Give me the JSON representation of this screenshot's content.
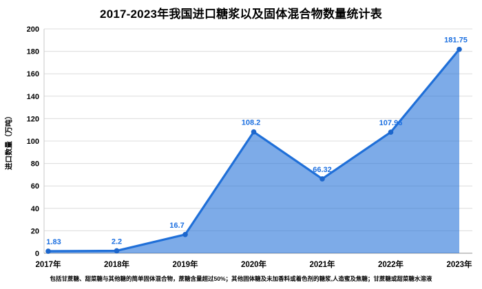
{
  "title": "2017-2023年我国进口糖浆以及固体混合物数量统计表",
  "footnote": "包括甘蔗糖、甜菜糖与其他糖的简单固体混合物，蔗糖含量超过50%；其他固体糖及未加香料或着色剂的糖浆,人造蜜及焦糖；甘蔗糖或甜菜糖水溶液",
  "chart_data": {
    "type": "area",
    "title": "2017-2023年我国进口糖浆以及固体混合物数量统计表",
    "categories": [
      "2017年",
      "2018年",
      "2019年",
      "2020年",
      "2021年",
      "2022年",
      "2023年"
    ],
    "values": [
      1.83,
      2.2,
      16.7,
      108.2,
      66.32,
      107.96,
      181.75
    ],
    "point_labels": [
      "1.83",
      "2.2",
      "16.7",
      "108.2",
      "66.32",
      "107.96",
      "181.75"
    ],
    "xlabel": "",
    "ylabel": "进口数量（万吨）",
    "ylim": [
      0,
      200
    ],
    "ytick_step": 20,
    "yticks": [
      0,
      20,
      40,
      60,
      80,
      100,
      120,
      140,
      160,
      180,
      200
    ],
    "grid": true,
    "legend_position": "none",
    "colors": {
      "line": "#1f6fd8",
      "fill": "rgba(31,111,216,0.58)",
      "marker": "#1c66cc",
      "point_label": "#1b6fe0",
      "grid": "#dcdcdc",
      "axis_left": "#c9c9c9",
      "axis_bottom": "#a6a6a6",
      "text": "#000000"
    },
    "label_dx": [
      8,
      0,
      -12,
      -4,
      0,
      0,
      -5
    ]
  }
}
